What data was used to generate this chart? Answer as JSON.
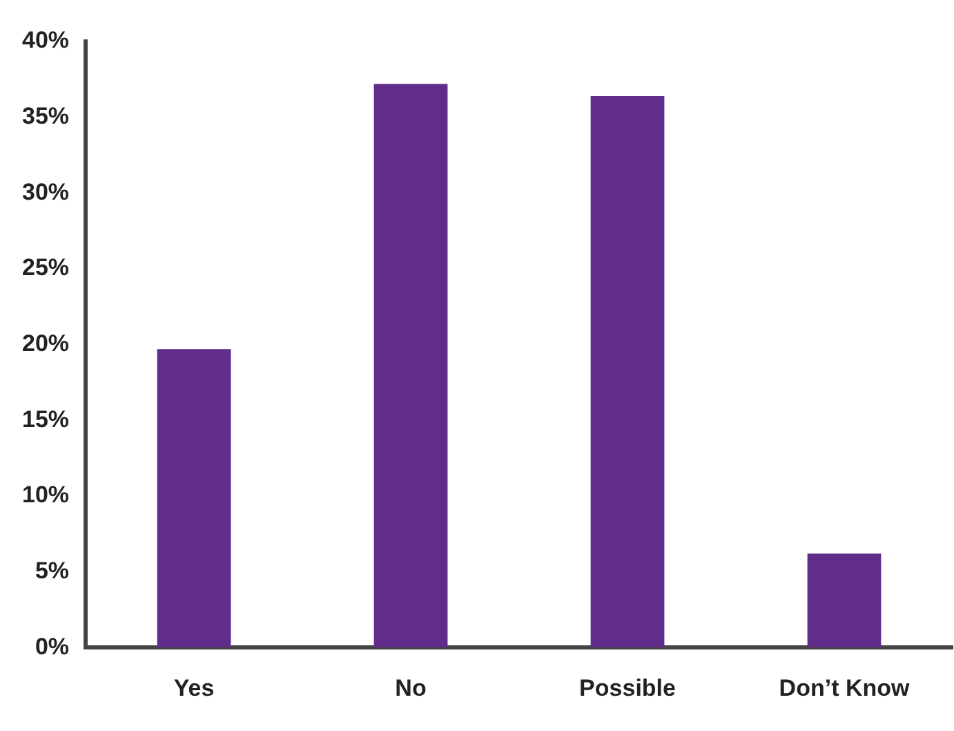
{
  "chart_data": {
    "type": "bar",
    "categories": [
      "Yes",
      "No",
      "Possible",
      "Don’t Know"
    ],
    "values": [
      19.7,
      37.2,
      36.4,
      6.2
    ],
    "color": "#622d8a",
    "ylim": [
      0,
      40
    ],
    "yticks": [
      {
        "value": 0,
        "label": "0%"
      },
      {
        "value": 5,
        "label": "5%"
      },
      {
        "value": 10,
        "label": "10%"
      },
      {
        "value": 15,
        "label": "15%"
      },
      {
        "value": 20,
        "label": "20%"
      },
      {
        "value": 25,
        "label": "25%"
      },
      {
        "value": 30,
        "label": "30%"
      },
      {
        "value": 35,
        "label": "35%"
      },
      {
        "value": 40,
        "label": "40%"
      }
    ],
    "grid": false,
    "legend": false
  }
}
